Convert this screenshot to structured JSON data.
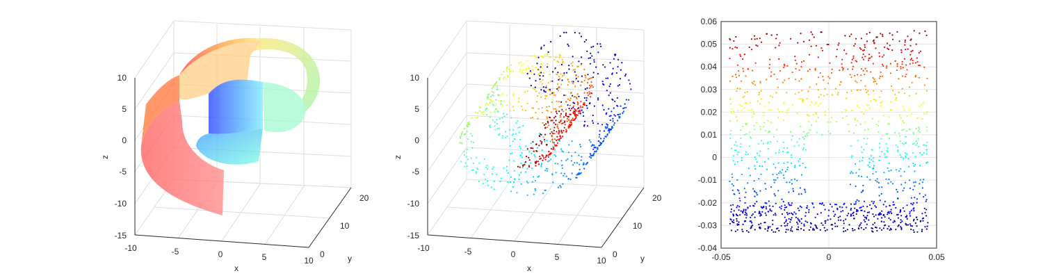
{
  "chart_data": [
    {
      "type": "surface",
      "title": "",
      "xlabel": "x",
      "ylabel": "y",
      "zlabel": "z",
      "xlim": [
        -10,
        10
      ],
      "ylim": [
        0,
        20
      ],
      "zlim": [
        -15,
        10
      ],
      "x_ticks": [
        "-10",
        "-5",
        "0",
        "5",
        "10"
      ],
      "y_ticks": [
        "0",
        "10",
        "20"
      ],
      "z_ticks": [
        "-15",
        "-10",
        "-5",
        "0",
        "5",
        "10"
      ],
      "grid": true,
      "colormap": "jet",
      "description_of_shape": "swiss roll surface with rectangular hole"
    },
    {
      "type": "scatter3d",
      "title": "",
      "xlabel": "x",
      "ylabel": "y",
      "zlabel": "z",
      "xlim": [
        -10,
        10
      ],
      "ylim": [
        0,
        20
      ],
      "zlim": [
        -15,
        10
      ],
      "x_ticks": [
        "-10",
        "-5",
        "0",
        "5",
        "10"
      ],
      "y_ticks": [
        "0",
        "10",
        "20"
      ],
      "z_ticks": [
        "-15",
        "-10",
        "-5",
        "0",
        "5",
        "10"
      ],
      "grid": true,
      "colormap": "jet"
    },
    {
      "type": "scatter",
      "title": "",
      "xlabel": "",
      "ylabel": "",
      "xlim": [
        -0.05,
        0.05
      ],
      "ylim": [
        -0.04,
        0.06
      ],
      "x_ticks": [
        "-0.05",
        "0",
        "0.05"
      ],
      "y_ticks": [
        "-0.04",
        "-0.03",
        "-0.02",
        "-0.01",
        "0",
        "0.01",
        "0.02",
        "0.03",
        "0.04",
        "0.05",
        "0.06"
      ],
      "grid": true,
      "colormap": "jet",
      "point_regions": [
        {
          "x": [
            -0.046,
            0.046
          ],
          "y": [
            0.01,
            0.056
          ]
        },
        {
          "x": [
            -0.046,
            -0.01
          ],
          "y": [
            -0.033,
            0.01
          ]
        },
        {
          "x": [
            0.01,
            0.046
          ],
          "y": [
            -0.033,
            0.01
          ]
        },
        {
          "x": [
            -0.046,
            0.046
          ],
          "y": [
            -0.033,
            -0.02
          ]
        }
      ]
    }
  ]
}
